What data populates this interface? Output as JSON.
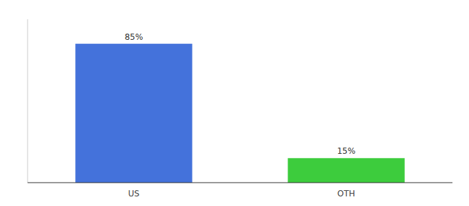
{
  "chart_data": {
    "type": "bar",
    "categories": [
      "US",
      "OTH"
    ],
    "values": [
      85,
      15
    ],
    "value_labels": [
      "85%",
      "15%"
    ],
    "colors": [
      "#4472db",
      "#3dcc3d"
    ],
    "ylim": [
      0,
      100
    ],
    "grid": false,
    "data_labels": true,
    "tick_labels": "x"
  }
}
